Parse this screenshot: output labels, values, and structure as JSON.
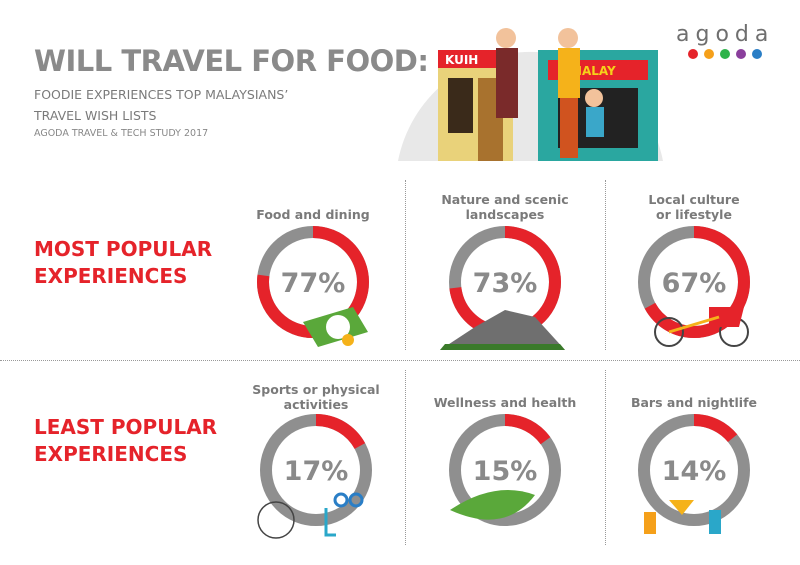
{
  "header": {
    "title": "WILL TRAVEL FOR FOOD:",
    "subtitle_line1": "FOODIE EXPERIENCES TOP MALAYSIANS’",
    "subtitle_line2": "TRAVEL WISH LISTS",
    "study": "AGODA TRAVEL & TECH STUDY 2017",
    "logo": "agoda",
    "logo_dot_colors": [
      "#e5232a",
      "#f5a01a",
      "#2db34a",
      "#8a3f9c",
      "#2a7ec6"
    ],
    "sign_left": "KUIH",
    "sign_right": "MALAY"
  },
  "sections": {
    "most": [
      "MOST POPULAR",
      "EXPERIENCES"
    ],
    "least": [
      "LEAST POPULAR",
      "EXPERIENCES"
    ]
  },
  "colors": {
    "accent": "#e5232a",
    "remainder": "#8f8f8f"
  },
  "chart_data": {
    "type": "donut",
    "unit": "%",
    "items": [
      {
        "label": [
          "Food and dining"
        ],
        "value": 77,
        "display": "77%",
        "group": "most",
        "icon": "nasi-lemak-icon"
      },
      {
        "label": [
          "Nature and scenic",
          "landscapes"
        ],
        "value": 73,
        "display": "73%",
        "group": "most",
        "icon": "mountain-icon"
      },
      {
        "label": [
          "Local culture",
          "or lifestyle"
        ],
        "value": 67,
        "display": "67%",
        "group": "most",
        "icon": "trishaw-icon"
      },
      {
        "label": [
          "Sports or physical",
          "activities"
        ],
        "value": 17,
        "display": "17%",
        "group": "least",
        "icon": "ferris-wheel-snorkel-icon"
      },
      {
        "label": [
          "Wellness and health"
        ],
        "value": 15,
        "display": "15%",
        "group": "least",
        "icon": "leaf-icon"
      },
      {
        "label": [
          "Bars and nightlife"
        ],
        "value": 14,
        "display": "14%",
        "group": "least",
        "icon": "cocktails-icon"
      }
    ]
  }
}
